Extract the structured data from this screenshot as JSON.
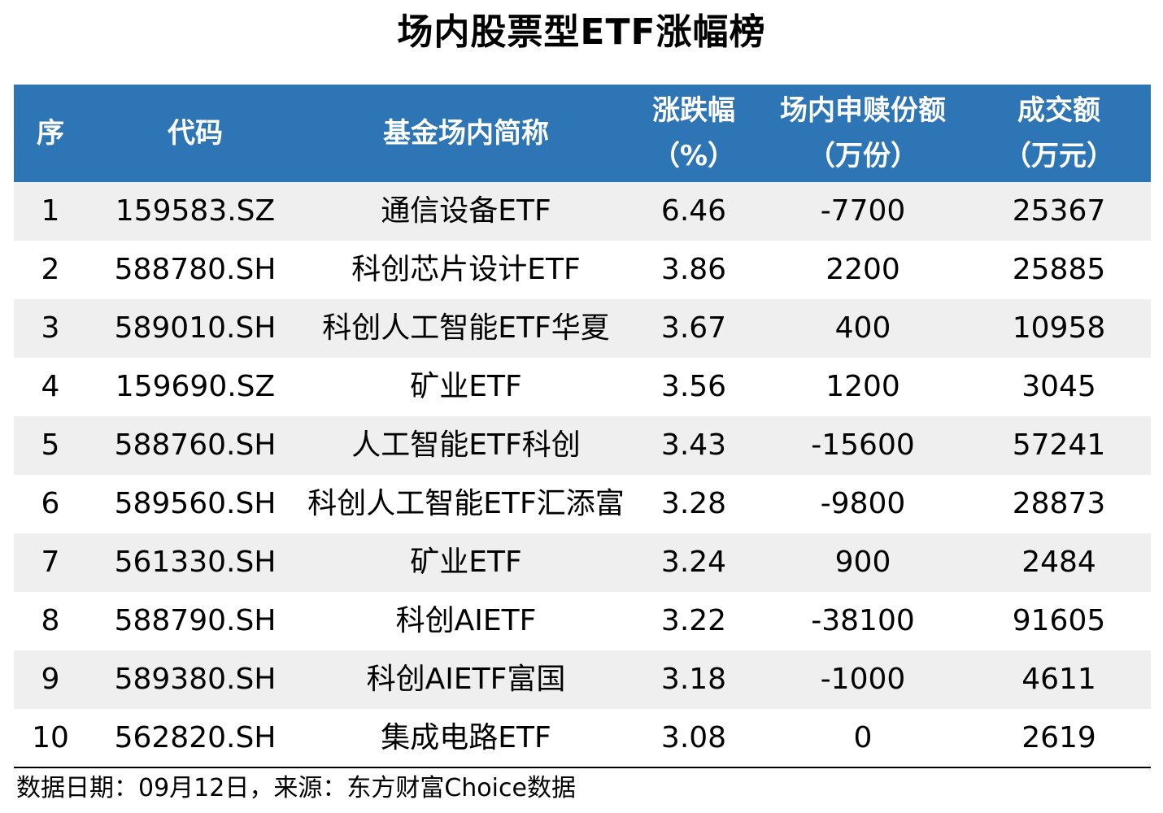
{
  "title": "场内股票型ETF涨幅榜",
  "table": {
    "headers": [
      {
        "line1": "序",
        "line2": ""
      },
      {
        "line1": "代码",
        "line2": ""
      },
      {
        "line1": "基金场内简称",
        "line2": ""
      },
      {
        "line1": "涨跌幅",
        "line2": "（%）"
      },
      {
        "line1": "场内申赎份额",
        "line2": "（万份）"
      },
      {
        "line1": "成交额",
        "line2": "（万元）"
      }
    ],
    "rows": [
      {
        "rank": "1",
        "code": "159583.SZ",
        "name": "通信设备ETF",
        "change": "6.46",
        "units": "-7700",
        "turnover": "25367"
      },
      {
        "rank": "2",
        "code": "588780.SH",
        "name": "科创芯片设计ETF",
        "change": "3.86",
        "units": "2200",
        "turnover": "25885"
      },
      {
        "rank": "3",
        "code": "589010.SH",
        "name": "科创人工智能ETF华夏",
        "change": "3.67",
        "units": "400",
        "turnover": "10958"
      },
      {
        "rank": "4",
        "code": "159690.SZ",
        "name": "矿业ETF",
        "change": "3.56",
        "units": "1200",
        "turnover": "3045"
      },
      {
        "rank": "5",
        "code": "588760.SH",
        "name": "人工智能ETF科创",
        "change": "3.43",
        "units": "-15600",
        "turnover": "57241"
      },
      {
        "rank": "6",
        "code": "589560.SH",
        "name": "科创人工智能ETF汇添富",
        "change": "3.28",
        "units": "-9800",
        "turnover": "28873"
      },
      {
        "rank": "7",
        "code": "561330.SH",
        "name": "矿业ETF",
        "change": "3.24",
        "units": "900",
        "turnover": "2484"
      },
      {
        "rank": "8",
        "code": "588790.SH",
        "name": "科创AIETF",
        "change": "3.22",
        "units": "-38100",
        "turnover": "91605"
      },
      {
        "rank": "9",
        "code": "589380.SH",
        "name": "科创AIETF富国",
        "change": "3.18",
        "units": "-1000",
        "turnover": "4611"
      },
      {
        "rank": "10",
        "code": "562820.SH",
        "name": "集成电路ETF",
        "change": "3.08",
        "units": "0",
        "turnover": "2619"
      }
    ]
  },
  "source": "数据日期：09月12日，来源：东方财富Choice数据",
  "colors": {
    "header_bg": "#2e75b6",
    "header_text": "#ffffff",
    "stripe": "#efefef"
  }
}
